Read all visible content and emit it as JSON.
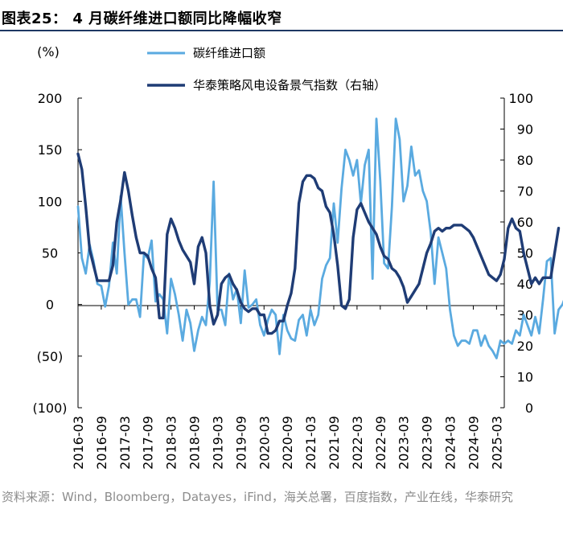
{
  "header": {
    "title": "图表25：  4 月碳纤维进口额同比降幅收窄"
  },
  "source": {
    "text": "资料来源：Wind，Bloomberg，Datayes，iFind，海关总署，百度指数，产业在线，华泰研究"
  },
  "colors": {
    "import_series": "#5aaae0",
    "index_series": "#1f3c75",
    "axis": "#000000",
    "header_rule": "#1f3864",
    "source_text": "#8c8c8c"
  },
  "chart_data": {
    "type": "line",
    "title": "4 月碳纤维进口额同比降幅收窄",
    "left_axis": {
      "label": "(%)",
      "range": [
        -100,
        200
      ],
      "ticks": [
        200,
        150,
        100,
        50,
        0,
        -50,
        -100
      ],
      "tick_labels": [
        "200",
        "150",
        "100",
        "50",
        "0",
        "(50)",
        "(100)"
      ]
    },
    "right_axis": {
      "label": "",
      "range": [
        0,
        100
      ],
      "ticks": [
        100,
        90,
        80,
        70,
        60,
        50,
        40,
        30,
        20,
        10,
        0
      ],
      "tick_labels": [
        "100",
        "90",
        "80",
        "70",
        "60",
        "50",
        "40",
        "30",
        "20",
        "10",
        "0"
      ]
    },
    "x_tick_labels": [
      "2016-03",
      "2016-09",
      "2017-03",
      "2017-09",
      "2018-03",
      "2018-09",
      "2019-03",
      "2019-09",
      "2020-03",
      "2020-09",
      "2021-03",
      "2021-09",
      "2022-03",
      "2022-09",
      "2023-03",
      "2023-09",
      "2024-03",
      "2024-09",
      "2025-03"
    ],
    "legend": [
      "碳纤维进口额",
      "华泰策略风电设备景气指数（右轴）"
    ],
    "legend_position": "top",
    "series": [
      {
        "name": "碳纤维进口额",
        "axis": "left",
        "start": "2016-03",
        "frequency": "monthly",
        "values": [
          95,
          45,
          30,
          58,
          42,
          20,
          18,
          -2,
          18,
          60,
          30,
          105,
          50,
          0,
          5,
          5,
          -12,
          48,
          45,
          62,
          3,
          10,
          5,
          -28,
          25,
          10,
          -10,
          -35,
          -5,
          -18,
          -45,
          -25,
          -12,
          -20,
          22,
          119,
          -5,
          -5,
          -20,
          30,
          5,
          15,
          -18,
          33,
          -3,
          0,
          5,
          -20,
          -30,
          -15,
          -5,
          -10,
          -48,
          -10,
          -25,
          -33,
          -35,
          -15,
          -10,
          -30,
          -5,
          -20,
          -10,
          25,
          38,
          45,
          98,
          60,
          112,
          150,
          140,
          125,
          140,
          98,
          135,
          150,
          25,
          180,
          120,
          40,
          35,
          95,
          180,
          160,
          100,
          115,
          153,
          125,
          130,
          110,
          100,
          70,
          20,
          65,
          50,
          35,
          -5,
          -30,
          -40,
          -35,
          -35,
          -38,
          -25,
          -25,
          -40,
          -30,
          -40,
          -45,
          -52,
          -35,
          -38,
          -35,
          -38,
          -25,
          -30,
          -10,
          -20,
          -30,
          -12,
          -28,
          5,
          42,
          45,
          -28,
          -5,
          0,
          10,
          -10,
          -5
        ]
      },
      {
        "name": "华泰策略风电设备景气指数（右轴）",
        "axis": "right",
        "start": "2016-03",
        "frequency": "monthly",
        "values": [
          82,
          77,
          65,
          51,
          46,
          41,
          41,
          41,
          41,
          46,
          60,
          67,
          76,
          70,
          62,
          55,
          50,
          50,
          49,
          45,
          42,
          29,
          29,
          56,
          61,
          58,
          54,
          51,
          49,
          47,
          40,
          52,
          55,
          50,
          33,
          27,
          30,
          40,
          42,
          43,
          40,
          38,
          34,
          32,
          31,
          32,
          32,
          30,
          30,
          24,
          24,
          25,
          28,
          28,
          33,
          37,
          45,
          66,
          73,
          75,
          75,
          74,
          71,
          70,
          65,
          63,
          56,
          46,
          33,
          32,
          35,
          55,
          64,
          66,
          63,
          60,
          58,
          56,
          52,
          49,
          48,
          45,
          44,
          42,
          39,
          34,
          36,
          38,
          40,
          45,
          50,
          53,
          57,
          58,
          57,
          58,
          58,
          59,
          59,
          59,
          58,
          57,
          55,
          52,
          49,
          46,
          43,
          42,
          41,
          43,
          48,
          58,
          61,
          58,
          57,
          50,
          45,
          40,
          42,
          40,
          42,
          42,
          42,
          50,
          58
        ]
      }
    ]
  }
}
